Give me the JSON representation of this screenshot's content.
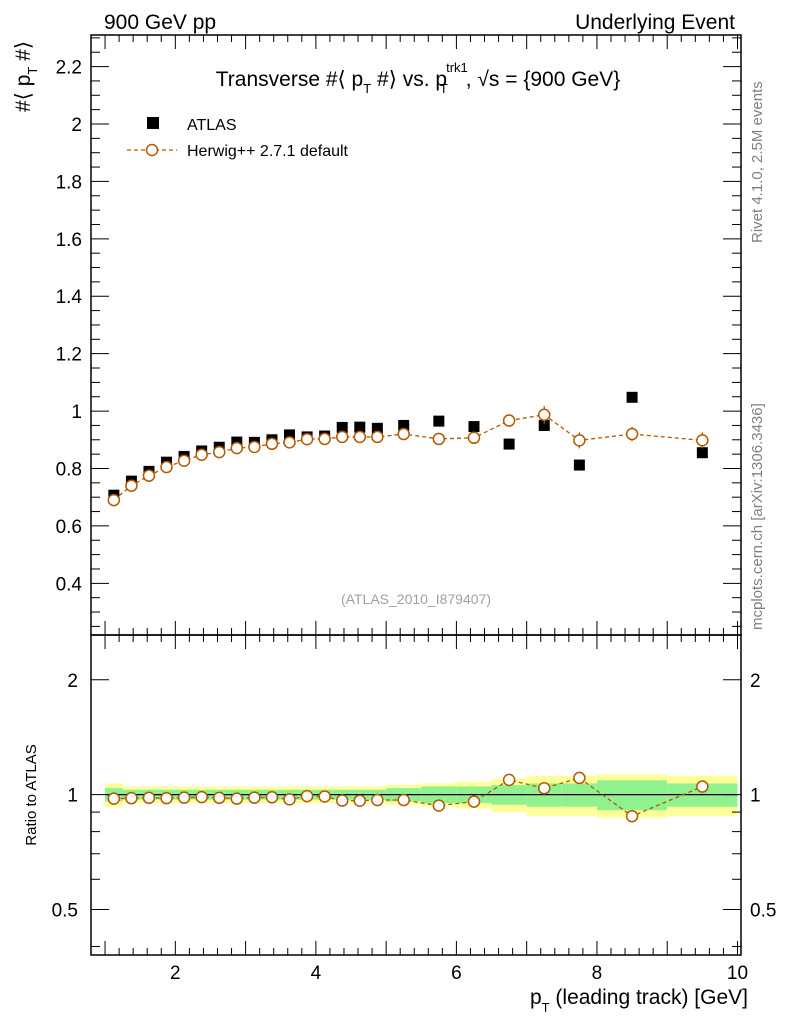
{
  "header": {
    "left": "900 GeV pp",
    "right": "Underlying Event"
  },
  "side": {
    "rivet": "Rivet 4.1.0,  2.5M events",
    "url": "mcplots.cern.ch [arXiv:1306.3436]"
  },
  "colors": {
    "mc": "#b35900",
    "band_inner": "#8ff28f",
    "band_outer": "#ffff99",
    "data": "#000000"
  },
  "chart_data": [
    {
      "type": "scatter",
      "panel": "main",
      "title": "Transverse #⟨ p_T #⟩ vs. p_T^trk1, √s = {900 GeV}",
      "title_parts": {
        "t1": "Transverse #⟨ p",
        "t1sub": "T",
        "t2": " #⟩ vs. p",
        "t2sup": "trk1",
        "t2sub": "T",
        "t3": ", √s = {900 GeV}"
      },
      "ylabel": "#⟨ p_T #⟩",
      "ylabel_parts": {
        "a": "#⟨ p",
        "sub": "T",
        "b": " #⟩"
      },
      "watermark": "(ATLAS_2010_I879407)",
      "ylim": [
        0.22,
        2.31
      ],
      "xlim": [
        0.8,
        10.05
      ],
      "ytick_labels": [
        "0.4",
        "0.6",
        "0.8",
        "1",
        "1.2",
        "1.4",
        "1.6",
        "1.8",
        "2",
        "2.2"
      ],
      "legend": {
        "position": "top-left",
        "entries": [
          "ATLAS",
          "Herwig++ 2.7.1 default"
        ]
      },
      "x": [
        1.125,
        1.375,
        1.625,
        1.875,
        2.125,
        2.375,
        2.625,
        2.875,
        3.125,
        3.375,
        3.625,
        3.875,
        4.125,
        4.375,
        4.625,
        4.875,
        5.25,
        5.75,
        6.25,
        6.75,
        7.25,
        7.75,
        8.5,
        9.5
      ],
      "series": [
        {
          "name": "ATLAS",
          "values": [
            0.707,
            0.756,
            0.79,
            0.822,
            0.842,
            0.861,
            0.874,
            0.892,
            0.891,
            0.9,
            0.917,
            0.91,
            0.913,
            0.943,
            0.944,
            0.94,
            0.95,
            0.965,
            0.946,
            0.885,
            0.95,
            0.812,
            1.048,
            0.855
          ]
        },
        {
          "name": "Herwig++ 2.7.1 default",
          "values": [
            0.69,
            0.74,
            0.775,
            0.805,
            0.827,
            0.848,
            0.857,
            0.871,
            0.875,
            0.886,
            0.891,
            0.902,
            0.903,
            0.91,
            0.91,
            0.91,
            0.92,
            0.903,
            0.907,
            0.967,
            0.987,
            0.898,
            0.92,
            0.898
          ],
          "errors": [
            0.008,
            0.008,
            0.008,
            0.008,
            0.008,
            0.008,
            0.008,
            0.008,
            0.008,
            0.008,
            0.008,
            0.009,
            0.009,
            0.01,
            0.01,
            0.01,
            0.01,
            0.012,
            0.013,
            0.02,
            0.03,
            0.028,
            0.025,
            0.028
          ]
        }
      ]
    },
    {
      "type": "scatter",
      "panel": "ratio",
      "ylabel": "Ratio to ATLAS",
      "xlabel": "p_T (leading track) [GeV]",
      "xlabel_parts": {
        "a": "p",
        "sub": "T",
        "b": " (leading track) [GeV]"
      },
      "ylim": [
        0.38,
        2.62
      ],
      "ytick_labels": [
        "0.5",
        "1",
        "2"
      ],
      "xtick_labels": [
        "2",
        "4",
        "6",
        "8",
        "10"
      ],
      "reference_line": 1,
      "bins": [
        [
          1.0,
          1.25
        ],
        [
          1.25,
          1.5
        ],
        [
          1.5,
          1.75
        ],
        [
          1.75,
          2.0
        ],
        [
          2.0,
          2.25
        ],
        [
          2.25,
          2.5
        ],
        [
          2.5,
          2.75
        ],
        [
          2.75,
          3.0
        ],
        [
          3.0,
          3.25
        ],
        [
          3.25,
          3.5
        ],
        [
          3.5,
          3.75
        ],
        [
          3.75,
          4.0
        ],
        [
          4.0,
          4.25
        ],
        [
          4.25,
          4.5
        ],
        [
          4.5,
          4.75
        ],
        [
          4.75,
          5.0
        ],
        [
          5.0,
          5.5
        ],
        [
          5.5,
          6.0
        ],
        [
          6.0,
          6.5
        ],
        [
          6.5,
          7.0
        ],
        [
          7.0,
          7.5
        ],
        [
          7.5,
          8.0
        ],
        [
          8.0,
          9.0
        ],
        [
          9.0,
          10.0
        ]
      ],
      "band_inner": [
        0.04,
        0.03,
        0.03,
        0.03,
        0.03,
        0.03,
        0.03,
        0.03,
        0.03,
        0.03,
        0.03,
        0.03,
        0.03,
        0.03,
        0.03,
        0.03,
        0.04,
        0.05,
        0.05,
        0.06,
        0.07,
        0.07,
        0.09,
        0.07
      ],
      "band_outer": [
        0.07,
        0.05,
        0.05,
        0.05,
        0.05,
        0.05,
        0.05,
        0.05,
        0.05,
        0.05,
        0.05,
        0.05,
        0.05,
        0.05,
        0.05,
        0.05,
        0.06,
        0.07,
        0.08,
        0.1,
        0.12,
        0.12,
        0.13,
        0.12
      ],
      "series": [
        {
          "name": "Herwig++ 2.7.1 default",
          "values": [
            0.976,
            0.979,
            0.981,
            0.979,
            0.982,
            0.985,
            0.981,
            0.976,
            0.982,
            0.984,
            0.972,
            0.991,
            0.989,
            0.965,
            0.964,
            0.968,
            0.968,
            0.936,
            0.959,
            1.093,
            1.039,
            1.106,
            0.878,
            1.05
          ],
          "errors": [
            0.01,
            0.01,
            0.01,
            0.01,
            0.01,
            0.01,
            0.01,
            0.01,
            0.01,
            0.01,
            0.01,
            0.01,
            0.01,
            0.01,
            0.01,
            0.01,
            0.012,
            0.013,
            0.014,
            0.022,
            0.032,
            0.03,
            0.026,
            0.033
          ]
        }
      ]
    }
  ]
}
